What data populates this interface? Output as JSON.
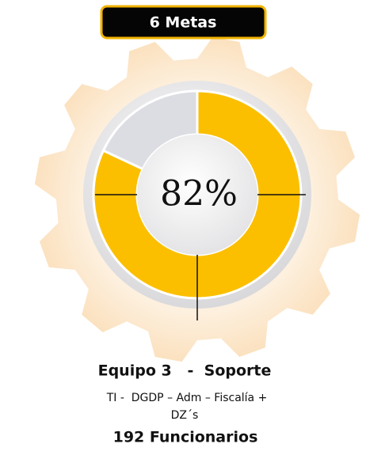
{
  "chart_data": {
    "type": "donut",
    "title": "6 Metas",
    "values": [
      82,
      18
    ],
    "value_labels": [
      "82%",
      null
    ],
    "colors": [
      "#fbbf00",
      "#dcdde3"
    ],
    "footer": [
      "Equipo 3   -  Soporte",
      "TI -  DGDP – Adm – Fiscalía +",
      "DZ´s",
      "192 Funcionarios"
    ]
  }
}
